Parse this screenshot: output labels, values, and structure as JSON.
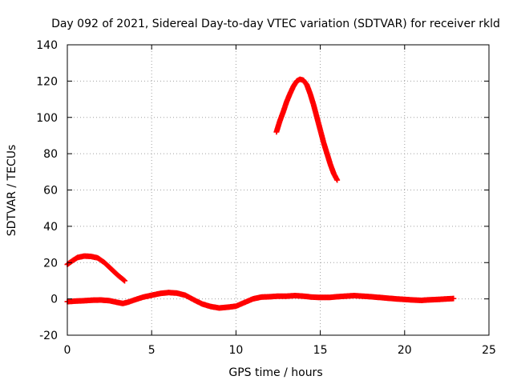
{
  "chart_data": {
    "type": "scatter",
    "title": "Day 092 of 2021, Sidereal Day-to-day VTEC variation (SDTVAR) for receiver rkld",
    "xlabel": "GPS time / hours",
    "ylabel": "SDTVAR / TECUs",
    "xlim": [
      0,
      25
    ],
    "ylim": [
      -20,
      140
    ],
    "xticks": [
      "0",
      "5",
      "10",
      "15",
      "20",
      "25"
    ],
    "yticks": [
      "-20",
      "0",
      "20",
      "40",
      "60",
      "80",
      "100",
      "120",
      "140"
    ],
    "grid": true,
    "legend": "none",
    "marker": "plus",
    "color": "#ff0000",
    "series": [
      {
        "points": [
          [
            0.0,
            19
          ],
          [
            0.3,
            21
          ],
          [
            0.6,
            22.8
          ],
          [
            1.0,
            23.6
          ],
          [
            1.4,
            23.4
          ],
          [
            1.8,
            22.6
          ],
          [
            2.2,
            20
          ],
          [
            2.6,
            16.5
          ],
          [
            3.0,
            13
          ],
          [
            3.4,
            10
          ]
        ]
      },
      {
        "points": [
          [
            12.4,
            92
          ],
          [
            12.6,
            98
          ],
          [
            12.8,
            103
          ],
          [
            13.0,
            108.5
          ],
          [
            13.2,
            113
          ],
          [
            13.4,
            117
          ],
          [
            13.6,
            120
          ],
          [
            13.8,
            121
          ],
          [
            14.0,
            120.5
          ],
          [
            14.2,
            118
          ],
          [
            14.4,
            113
          ],
          [
            14.6,
            107
          ],
          [
            14.8,
            100
          ],
          [
            15.0,
            93
          ],
          [
            15.2,
            86
          ],
          [
            15.4,
            80
          ],
          [
            15.6,
            74
          ],
          [
            15.8,
            69
          ],
          [
            16.0,
            65.5
          ]
        ]
      },
      {
        "points": [
          [
            0.0,
            -1.5
          ],
          [
            0.5,
            -1.2
          ],
          [
            1.0,
            -1
          ],
          [
            1.5,
            -0.7
          ],
          [
            2.0,
            -0.6
          ],
          [
            2.5,
            -1
          ],
          [
            3.0,
            -2
          ],
          [
            3.3,
            -2.5
          ],
          [
            3.6,
            -1.8
          ],
          [
            4.0,
            -0.5
          ],
          [
            4.5,
            1
          ],
          [
            5.0,
            2
          ],
          [
            5.5,
            3
          ],
          [
            6.0,
            3.5
          ],
          [
            6.5,
            3.2
          ],
          [
            7.0,
            2
          ],
          [
            7.5,
            -0.5
          ],
          [
            8.0,
            -2.8
          ],
          [
            8.5,
            -4.2
          ],
          [
            9.0,
            -5
          ],
          [
            9.5,
            -4.6
          ],
          [
            10.0,
            -4
          ],
          [
            10.5,
            -2
          ],
          [
            11.0,
            0
          ],
          [
            11.5,
            1
          ],
          [
            12.0,
            1.2
          ],
          [
            12.5,
            1.5
          ],
          [
            13.0,
            1.5
          ],
          [
            13.5,
            1.8
          ],
          [
            14.0,
            1.5
          ],
          [
            14.5,
            1
          ],
          [
            15.0,
            0.8
          ],
          [
            15.5,
            0.8
          ],
          [
            16.0,
            1.2
          ],
          [
            16.5,
            1.5
          ],
          [
            17.0,
            1.8
          ],
          [
            17.5,
            1.5
          ],
          [
            18.0,
            1.2
          ],
          [
            18.5,
            0.8
          ],
          [
            19.0,
            0.4
          ],
          [
            19.5,
            0
          ],
          [
            20.0,
            -0.3
          ],
          [
            20.5,
            -0.6
          ],
          [
            21.0,
            -0.8
          ],
          [
            21.5,
            -0.5
          ],
          [
            22.0,
            -0.3
          ],
          [
            22.5,
            0
          ],
          [
            22.9,
            0.2
          ]
        ]
      }
    ]
  }
}
